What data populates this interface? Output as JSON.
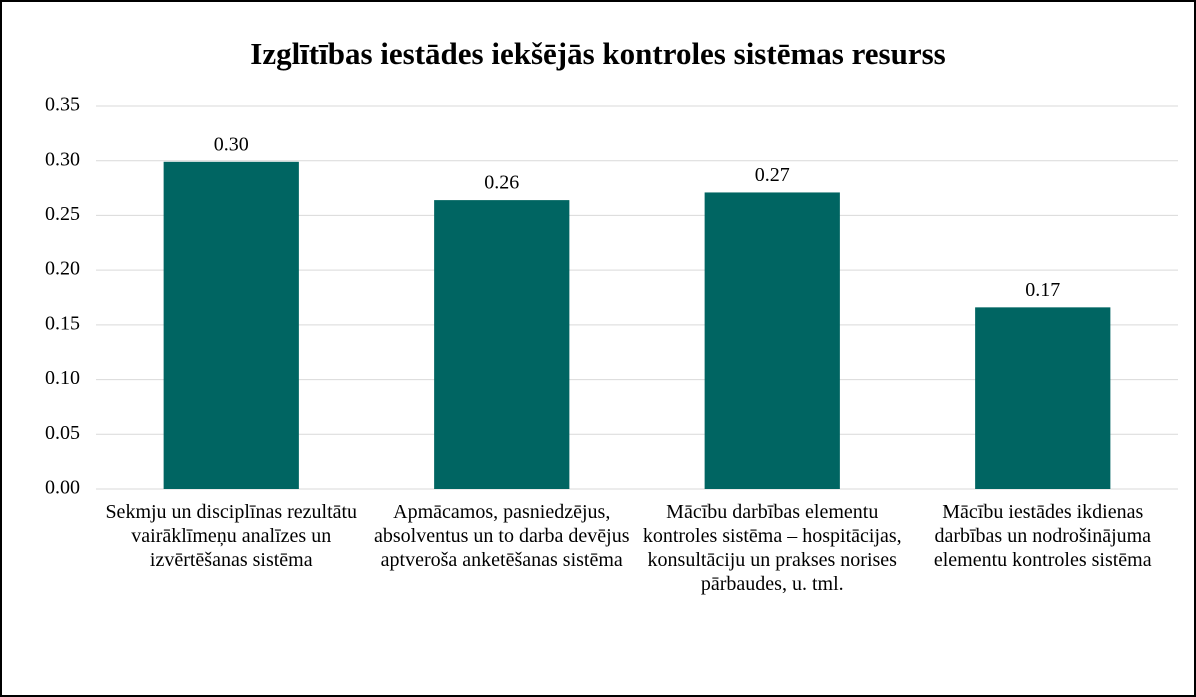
{
  "chart_data": {
    "type": "bar",
    "title": "Izglītības iestādes iekšējās kontroles sistēmas resurss",
    "categories": [
      "Sekmju un disciplīnas rezultātu vairāklīmeņu analīzes un izvērtēšanas sistēma",
      "Apmācamos, pasniedzējus, absolventus un to darba devējus aptveroša anketēšanas sistēma",
      "Mācību darbības elementu kontroles sistēma – hospitācijas, konsultāciju un prakses norises pārbaudes, u. tml.",
      "Mācību iestādes ikdienas darbības un nodrošinājuma elementu kontroles sistēma"
    ],
    "values": [
      0.299,
      0.264,
      0.271,
      0.166
    ],
    "value_labels": [
      "0.30",
      "0.26",
      "0.27",
      "0.17"
    ],
    "color": "#006562",
    "ylim": [
      0,
      0.35
    ],
    "yticks": [
      {
        "value": 0,
        "label": "0.00"
      },
      0.05,
      {
        "value": 0.1,
        "label": "0.10"
      },
      0.15,
      {
        "value": 0.2,
        "label": "0.20"
      },
      0.25,
      {
        "value": 0.3,
        "label": "0.30"
      },
      0.35
    ],
    "grid": true
  }
}
